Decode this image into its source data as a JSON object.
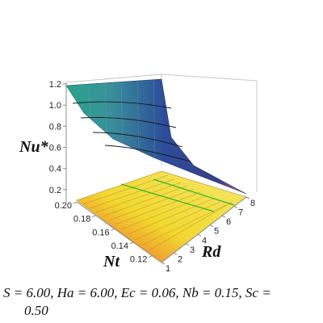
{
  "chart_data": {
    "type": "surface",
    "axes": {
      "x": {
        "label": "Rd",
        "ticks": [
          "1",
          "2",
          "3",
          "4",
          "5",
          "6",
          "7",
          "8"
        ],
        "range": [
          1,
          8
        ]
      },
      "y": {
        "label": "Nt",
        "ticks": [
          "0.12",
          "0.14",
          "0.16",
          "0.18",
          "0.20"
        ],
        "range": [
          0.11,
          0.2
        ]
      },
      "z": {
        "label": "Nu*",
        "ticks": [
          "0.2",
          "0.4",
          "0.6",
          "0.8",
          "1.0",
          "1.2"
        ],
        "range": [
          0.1,
          1.2
        ]
      }
    },
    "series": [
      {
        "surface": "upper",
        "rd": [
          1,
          2,
          3,
          4,
          5,
          6,
          7,
          8
        ],
        "nu": [
          1.18,
          0.88,
          0.68,
          0.54,
          0.45,
          0.39,
          0.35,
          0.33
        ]
      },
      {
        "surface": "lower",
        "nu": 0.12
      }
    ],
    "grid": false
  },
  "caption": {
    "line1": "S = 6.00, Ha = 6.00, Ec = 0.06, Nb = 0.15, Sc =",
    "line2": "0.50"
  }
}
